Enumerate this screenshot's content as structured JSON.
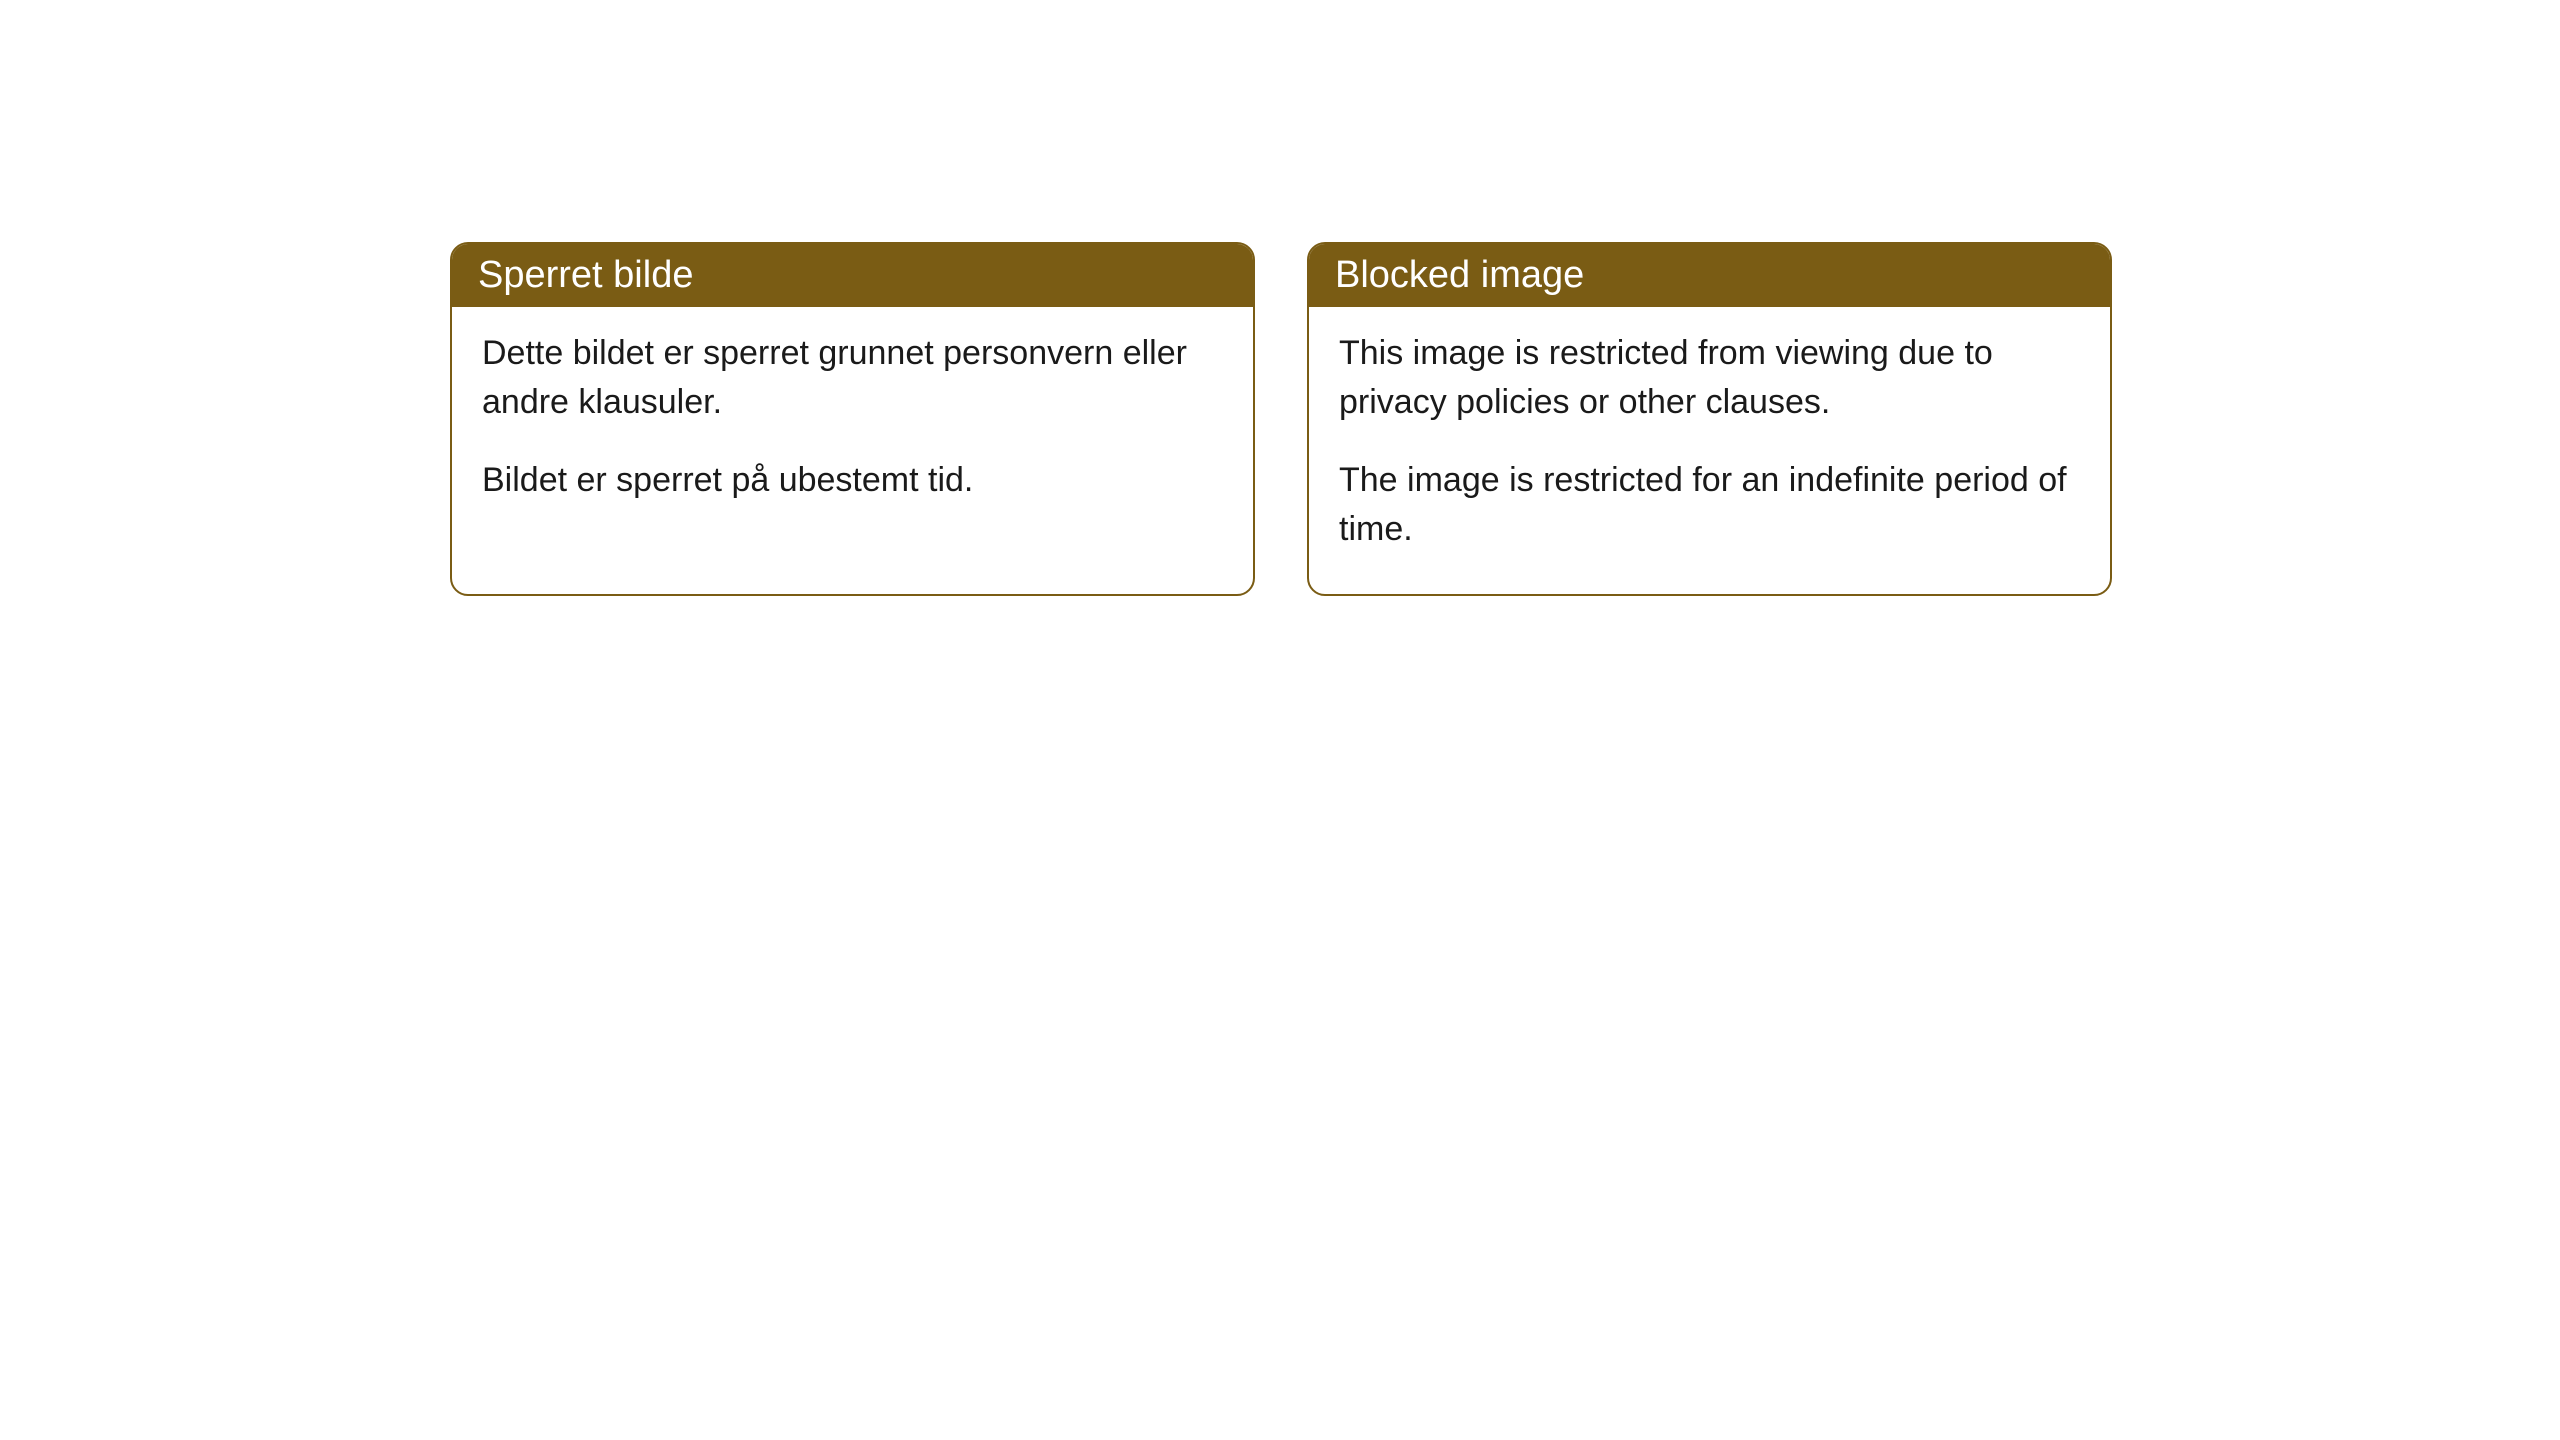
{
  "cards": [
    {
      "title": "Sperret bilde",
      "paragraph1": "Dette bildet er sperret grunnet personvern eller andre klausuler.",
      "paragraph2": "Bildet er sperret på ubestemt tid."
    },
    {
      "title": "Blocked image",
      "paragraph1": "This image is restricted from viewing due to privacy policies or other clauses.",
      "paragraph2": "The image is restricted for an indefinite period of time."
    }
  ],
  "styling": {
    "header_background": "#7a5c14",
    "header_text_color": "#ffffff",
    "border_color": "#7a5c14",
    "body_background": "#ffffff",
    "body_text_color": "#1a1a1a",
    "border_radius": 18,
    "title_fontsize": 38,
    "body_fontsize": 34
  }
}
